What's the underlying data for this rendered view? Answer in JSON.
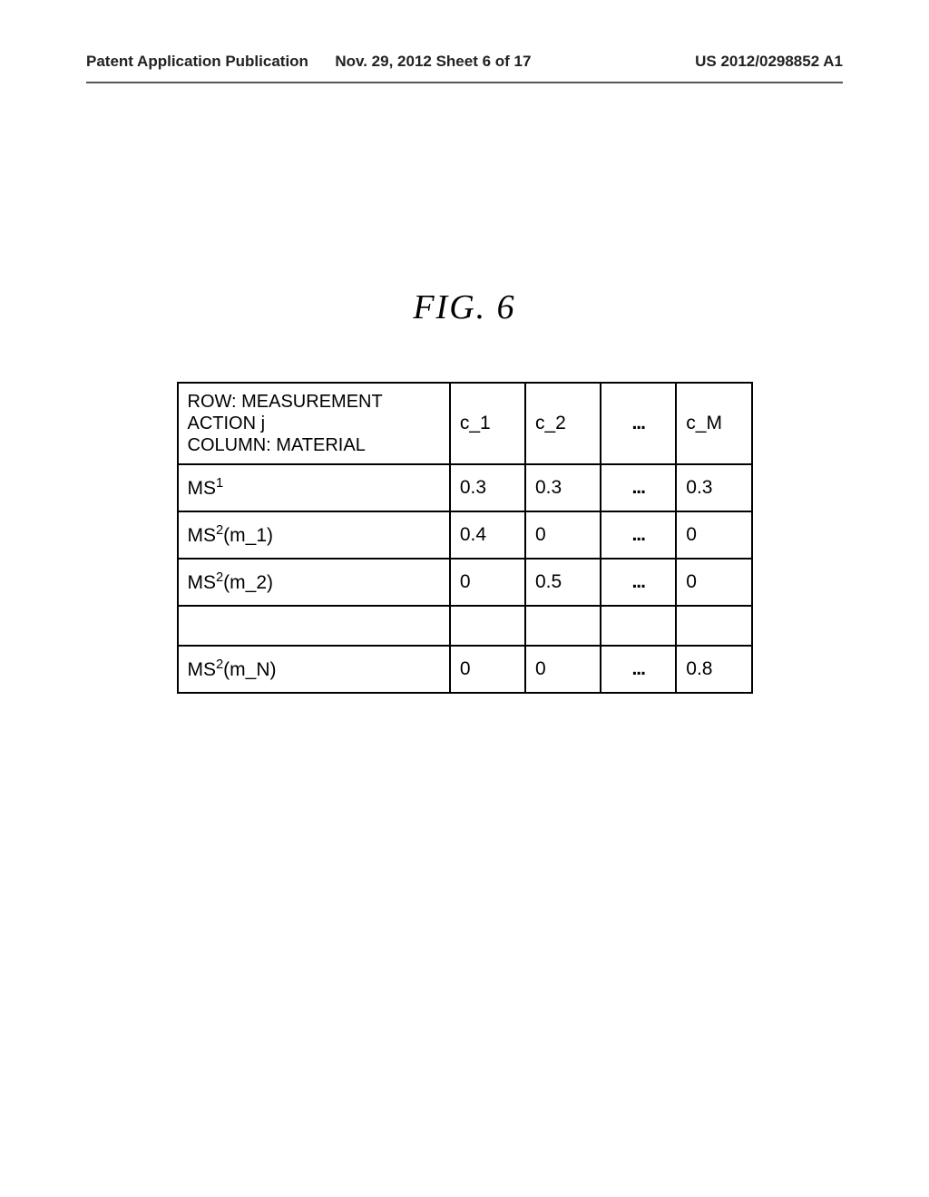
{
  "header": {
    "left": "Patent Application Publication",
    "center": "Nov. 29, 2012  Sheet 6 of 17",
    "right": "US 2012/0298852 A1"
  },
  "figure": {
    "title": "FIG.  6"
  },
  "table": {
    "header_cell_line1": "ROW: MEASUREMENT ACTION j",
    "header_cell_line2": "COLUMN: MATERIAL",
    "columns": [
      "c_1",
      "c_2",
      "...",
      "c_M"
    ],
    "rows": [
      {
        "label_prefix": "MS",
        "label_sup": "1",
        "label_suffix": "",
        "values": [
          "0.3",
          "0.3",
          "...",
          "0.3"
        ]
      },
      {
        "label_prefix": "MS",
        "label_sup": "2",
        "label_suffix": "(m_1)",
        "values": [
          "0.4",
          "0",
          "...",
          "0"
        ]
      },
      {
        "label_prefix": "MS",
        "label_sup": "2",
        "label_suffix": "(m_2)",
        "values": [
          "0",
          "0.5",
          "...",
          "0"
        ]
      },
      {
        "label_prefix": "",
        "label_sup": "",
        "label_suffix": "",
        "values": [
          "",
          "",
          "",
          ""
        ]
      },
      {
        "label_prefix": "MS",
        "label_sup": "2",
        "label_suffix": "(m_N)",
        "values": [
          "0",
          "0",
          "...",
          "0.8"
        ]
      }
    ]
  },
  "style": {
    "ellipsis": "..."
  }
}
